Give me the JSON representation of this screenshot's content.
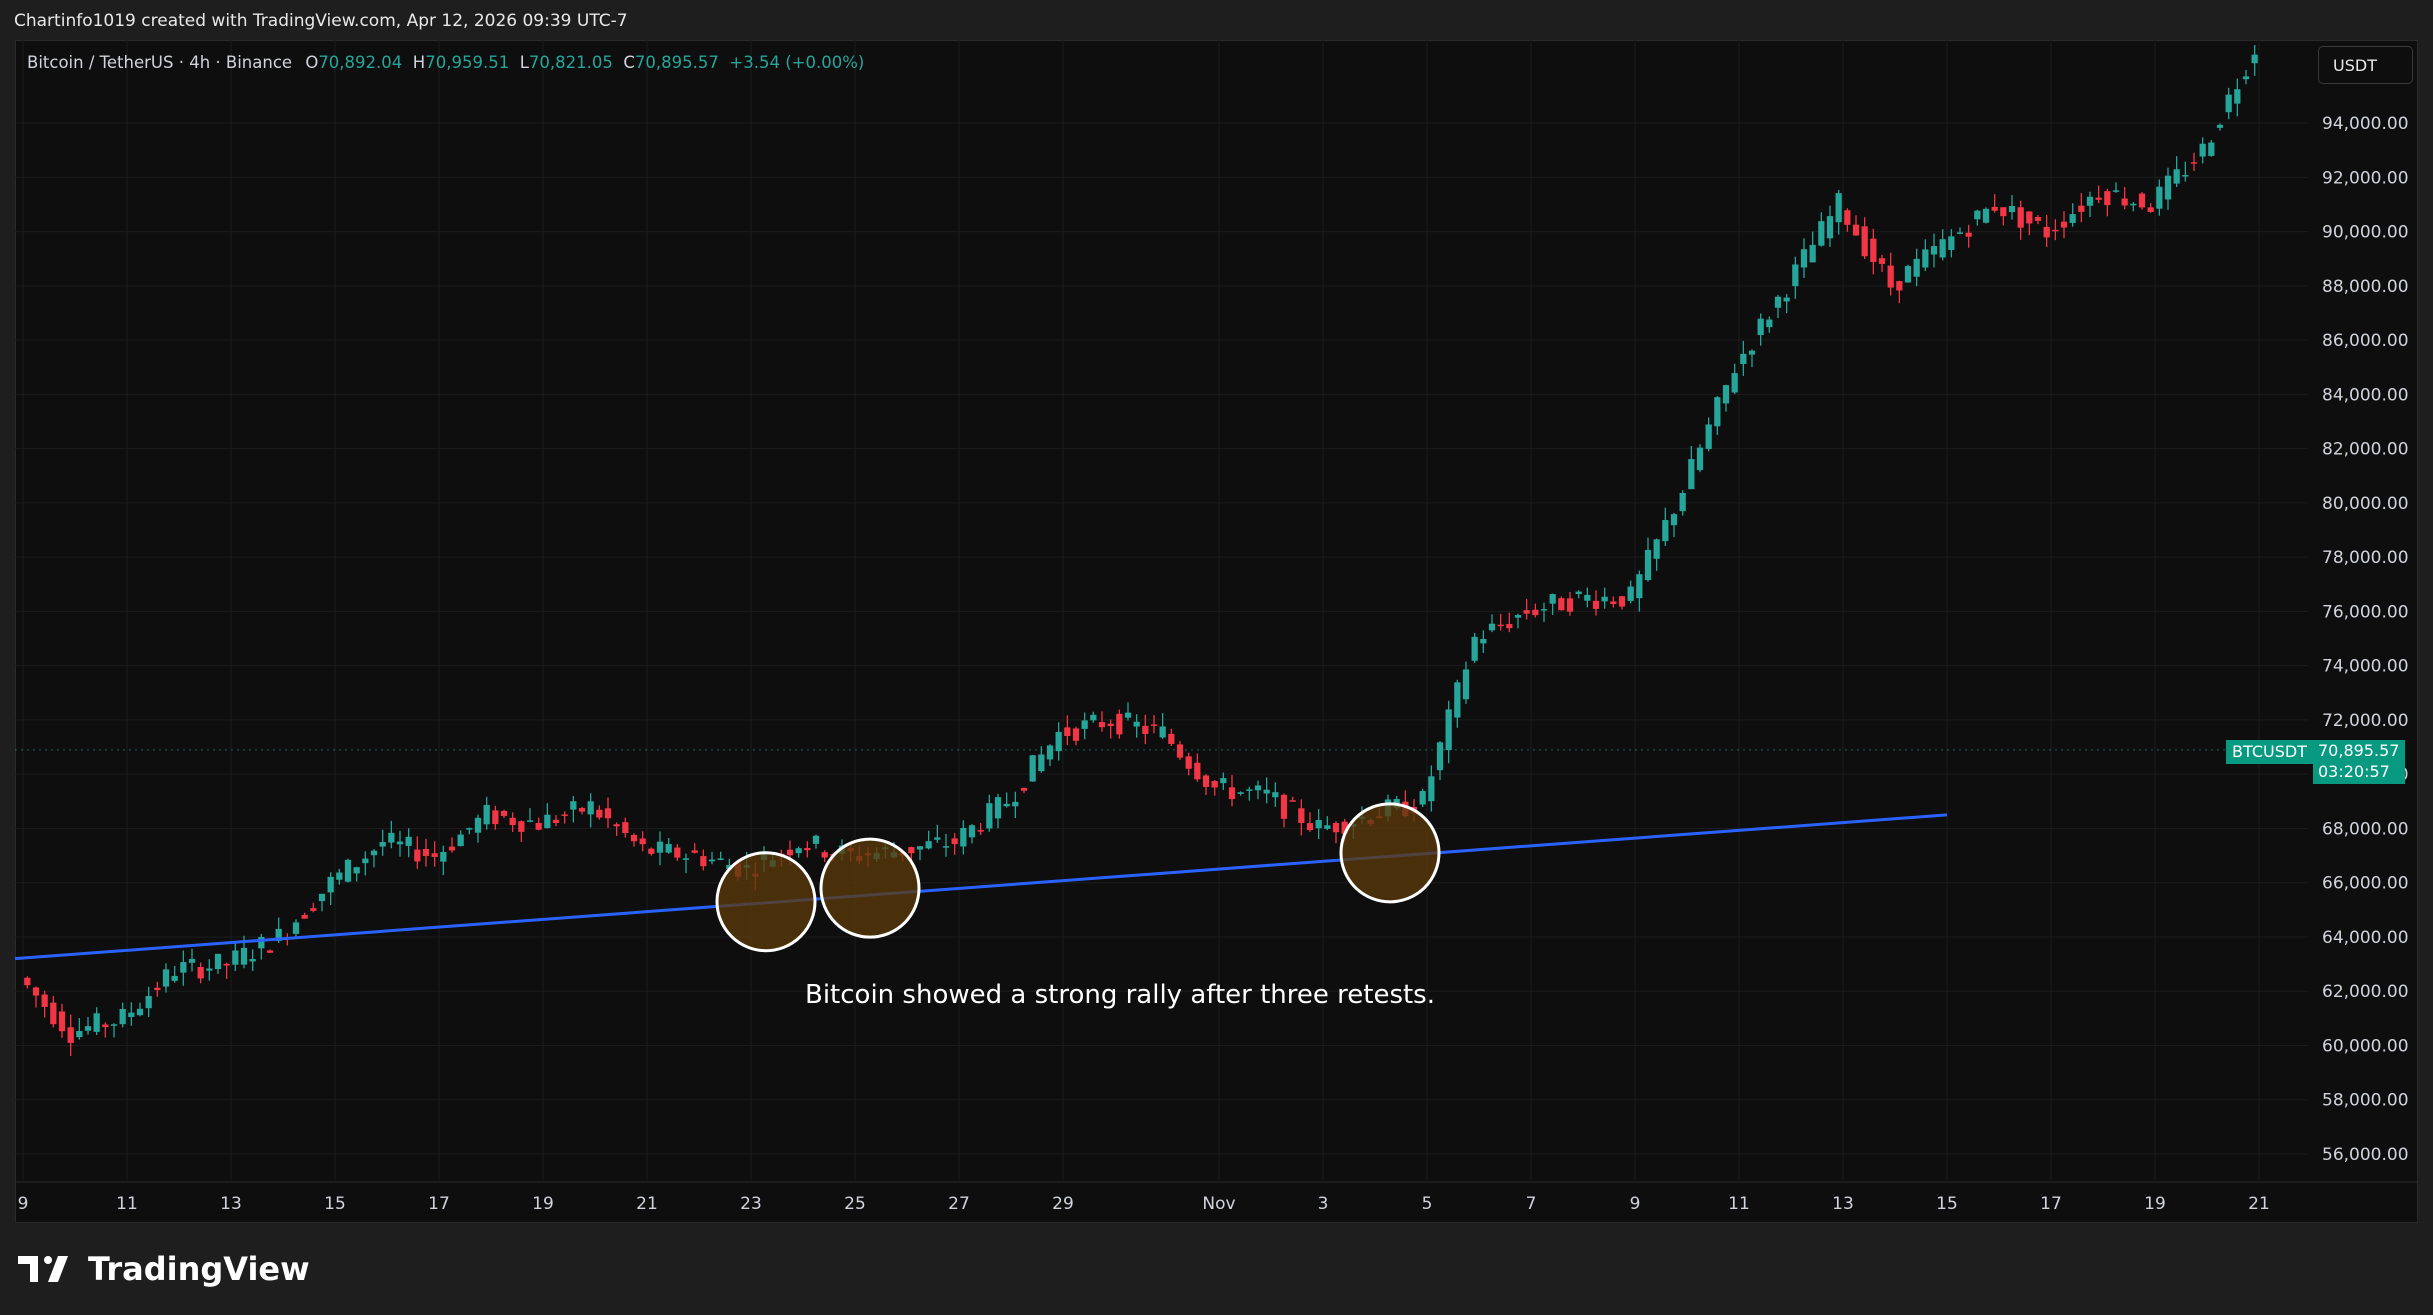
{
  "header": {
    "text": "Chartinfo1019 created with TradingView.com, Apr 12, 2026 09:39 UTC-7"
  },
  "legend": {
    "symbol": "Bitcoin / TetherUS · 4h · Binance",
    "o_label": "O",
    "o_value": "70,892.04",
    "h_label": "H",
    "h_value": "70,959.51",
    "l_label": "L",
    "l_value": "70,821.05",
    "c_label": "C",
    "c_value": "70,895.57",
    "change": "+3.54 (+0.00%)"
  },
  "currency_button": {
    "label": "USDT"
  },
  "price_badge": {
    "ticker": "BTCUSDT",
    "price": "70,895.57",
    "countdown": "03:20:57"
  },
  "annotation": {
    "text": "Bitcoin showed a strong rally after three retests."
  },
  "footer": {
    "brand": "TradingView"
  },
  "colors": {
    "up": "#26a69a",
    "down": "#f23645",
    "trendline": "#2962ff",
    "circle_fill": "#5a3a0a",
    "circle_stroke": "#ffffff"
  },
  "chart_data": {
    "type": "candlestick",
    "symbol": "BTCUSDT",
    "interval": "4h",
    "ylim": [
      55000,
      97000
    ],
    "y_ticks": [
      "56,000.00",
      "58,000.00",
      "60,000.00",
      "62,000.00",
      "64,000.00",
      "66,000.00",
      "68,000.00",
      "70,000.00",
      "72,000.00",
      "74,000.00",
      "76,000.00",
      "78,000.00",
      "80,000.00",
      "82,000.00",
      "84,000.00",
      "86,000.00",
      "88,000.00",
      "90,000.00",
      "92,000.00",
      "94,000.00"
    ],
    "x_ticks": [
      "9",
      "11",
      "13",
      "15",
      "17",
      "19",
      "21",
      "23",
      "25",
      "27",
      "29",
      "Nov",
      "3",
      "5",
      "7",
      "9",
      "11",
      "13",
      "15",
      "17",
      "19",
      "21"
    ],
    "x_days": [
      "Oct 9",
      "Oct 11",
      "Oct 13",
      "Oct 15",
      "Oct 17",
      "Oct 19",
      "Oct 21",
      "Oct 23",
      "Oct 25",
      "Oct 27",
      "Oct 29",
      "Nov 1",
      "Nov 3",
      "Nov 5",
      "Nov 7",
      "Nov 9",
      "Nov 11",
      "Nov 13",
      "Nov 15",
      "Nov 17",
      "Nov 19",
      "Nov 21"
    ],
    "series": [
      {
        "date": "Oct 9",
        "close": 62500
      },
      {
        "date": "Oct 10",
        "close": 60500
      },
      {
        "date": "Oct 11",
        "close": 61000
      },
      {
        "date": "Oct 12",
        "close": 62800
      },
      {
        "date": "Oct 13",
        "close": 63000
      },
      {
        "date": "Oct 14",
        "close": 64000
      },
      {
        "date": "Oct 15",
        "close": 66000
      },
      {
        "date": "Oct 16",
        "close": 67500
      },
      {
        "date": "Oct 17",
        "close": 67000
      },
      {
        "date": "Oct 18",
        "close": 68500
      },
      {
        "date": "Oct 19",
        "close": 68200
      },
      {
        "date": "Oct 20",
        "close": 68800
      },
      {
        "date": "Oct 21",
        "close": 67200
      },
      {
        "date": "Oct 22",
        "close": 67000
      },
      {
        "date": "Oct 23",
        "close": 66500
      },
      {
        "date": "Oct 24",
        "close": 67500
      },
      {
        "date": "Oct 25",
        "close": 67000
      },
      {
        "date": "Oct 26",
        "close": 67200
      },
      {
        "date": "Oct 27",
        "close": 67500
      },
      {
        "date": "Oct 28",
        "close": 69000
      },
      {
        "date": "Oct 29",
        "close": 71500
      },
      {
        "date": "Oct 30",
        "close": 72000
      },
      {
        "date": "Oct 31",
        "close": 71500
      },
      {
        "date": "Nov 1",
        "close": 69500
      },
      {
        "date": "Nov 2",
        "close": 69200
      },
      {
        "date": "Nov 3",
        "close": 68000
      },
      {
        "date": "Nov 4",
        "close": 68500
      },
      {
        "date": "Nov 5",
        "close": 69000
      },
      {
        "date": "Nov 6",
        "close": 75000
      },
      {
        "date": "Nov 7",
        "close": 76000
      },
      {
        "date": "Nov 8",
        "close": 76500
      },
      {
        "date": "Nov 9",
        "close": 76500
      },
      {
        "date": "Nov 10",
        "close": 80500
      },
      {
        "date": "Nov 11",
        "close": 85000
      },
      {
        "date": "Nov 12",
        "close": 88000
      },
      {
        "date": "Nov 13",
        "close": 91000
      },
      {
        "date": "Nov 14",
        "close": 88000
      },
      {
        "date": "Nov 15",
        "close": 89500
      },
      {
        "date": "Nov 16",
        "close": 91000
      },
      {
        "date": "Nov 17",
        "close": 90000
      },
      {
        "date": "Nov 18",
        "close": 91500
      },
      {
        "date": "Nov 19",
        "close": 91000
      },
      {
        "date": "Nov 20",
        "close": 93000
      },
      {
        "date": "Nov 21",
        "close": 96800
      }
    ],
    "trendline": {
      "from": {
        "date": "Oct 9",
        "price": 63200
      },
      "to": {
        "date": "Nov 15",
        "price": 68500
      }
    },
    "retest_markers": [
      {
        "date": "Oct 23",
        "price": 65300
      },
      {
        "date": "Oct 25",
        "price": 65800
      },
      {
        "date": "Nov 4",
        "price": 67100
      }
    ],
    "last_price": 70895.57
  }
}
